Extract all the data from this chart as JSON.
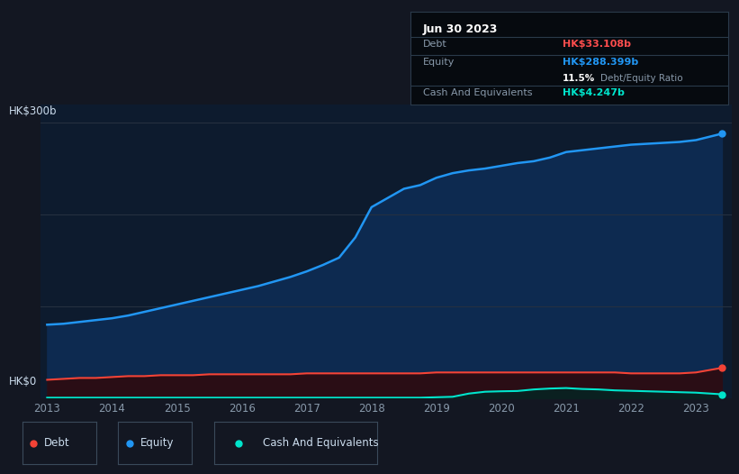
{
  "background_color": "#131722",
  "plot_bg_color": "#0d1b2e",
  "title_box": {
    "date": "Jun 30 2023",
    "debt_label": "Debt",
    "debt_value": "HK$33.108b",
    "debt_color": "#ff4d4d",
    "equity_label": "Equity",
    "equity_value": "HK$288.399b",
    "equity_color": "#2196f3",
    "ratio_bold": "11.5%",
    "ratio_text": "Debt/Equity Ratio",
    "cash_label": "Cash And Equivalents",
    "cash_value": "HK$4.247b",
    "cash_color": "#00e5cc"
  },
  "y_label_top": "HK$300b",
  "y_label_bottom": "HK$0",
  "x_ticks": [
    "2013",
    "2014",
    "2015",
    "2016",
    "2017",
    "2018",
    "2019",
    "2020",
    "2021",
    "2022",
    "2023"
  ],
  "equity_line_color": "#2196f3",
  "equity_fill_color": "#0d2a50",
  "debt_line_color": "#f44336",
  "debt_fill_color": "#2a0d15",
  "cash_line_color": "#00e5cc",
  "cash_fill_color": "#0a2020",
  "years": [
    2013.0,
    2013.25,
    2013.5,
    2013.75,
    2014.0,
    2014.25,
    2014.5,
    2014.75,
    2015.0,
    2015.25,
    2015.5,
    2015.75,
    2016.0,
    2016.25,
    2016.5,
    2016.75,
    2017.0,
    2017.25,
    2017.5,
    2017.75,
    2018.0,
    2018.25,
    2018.5,
    2018.75,
    2019.0,
    2019.25,
    2019.5,
    2019.75,
    2020.0,
    2020.25,
    2020.5,
    2020.75,
    2021.0,
    2021.25,
    2021.5,
    2021.75,
    2022.0,
    2022.25,
    2022.5,
    2022.75,
    2023.0,
    2023.4
  ],
  "equity": [
    80,
    81,
    83,
    85,
    87,
    90,
    94,
    98,
    102,
    106,
    110,
    114,
    118,
    122,
    127,
    132,
    138,
    145,
    153,
    175,
    208,
    218,
    228,
    232,
    240,
    245,
    248,
    250,
    253,
    256,
    258,
    262,
    268,
    270,
    272,
    274,
    276,
    277,
    278,
    279,
    281,
    288
  ],
  "debt": [
    20,
    21,
    22,
    22,
    23,
    24,
    24,
    25,
    25,
    25,
    26,
    26,
    26,
    26,
    26,
    26,
    27,
    27,
    27,
    27,
    27,
    27,
    27,
    27,
    28,
    28,
    28,
    28,
    28,
    28,
    28,
    28,
    28,
    28,
    28,
    28,
    27,
    27,
    27,
    27,
    28,
    33
  ],
  "cash": [
    0.5,
    0.5,
    0.5,
    0.5,
    0.5,
    0.5,
    0.5,
    0.5,
    0.5,
    0.5,
    0.5,
    0.5,
    0.5,
    0.5,
    0.5,
    0.5,
    0.5,
    0.5,
    0.5,
    0.5,
    0.5,
    0.5,
    0.5,
    0.5,
    1.0,
    1.5,
    5.0,
    7.0,
    7.5,
    7.8,
    9.5,
    10.5,
    11.0,
    10.0,
    9.5,
    8.5,
    8.0,
    7.5,
    7.0,
    6.5,
    6.0,
    4.2
  ],
  "ylim": [
    0,
    320
  ],
  "legend_items": [
    {
      "label": "Debt",
      "color": "#f44336"
    },
    {
      "label": "Equity",
      "color": "#2196f3"
    },
    {
      "label": "Cash And Equivalents",
      "color": "#00e5cc"
    }
  ]
}
